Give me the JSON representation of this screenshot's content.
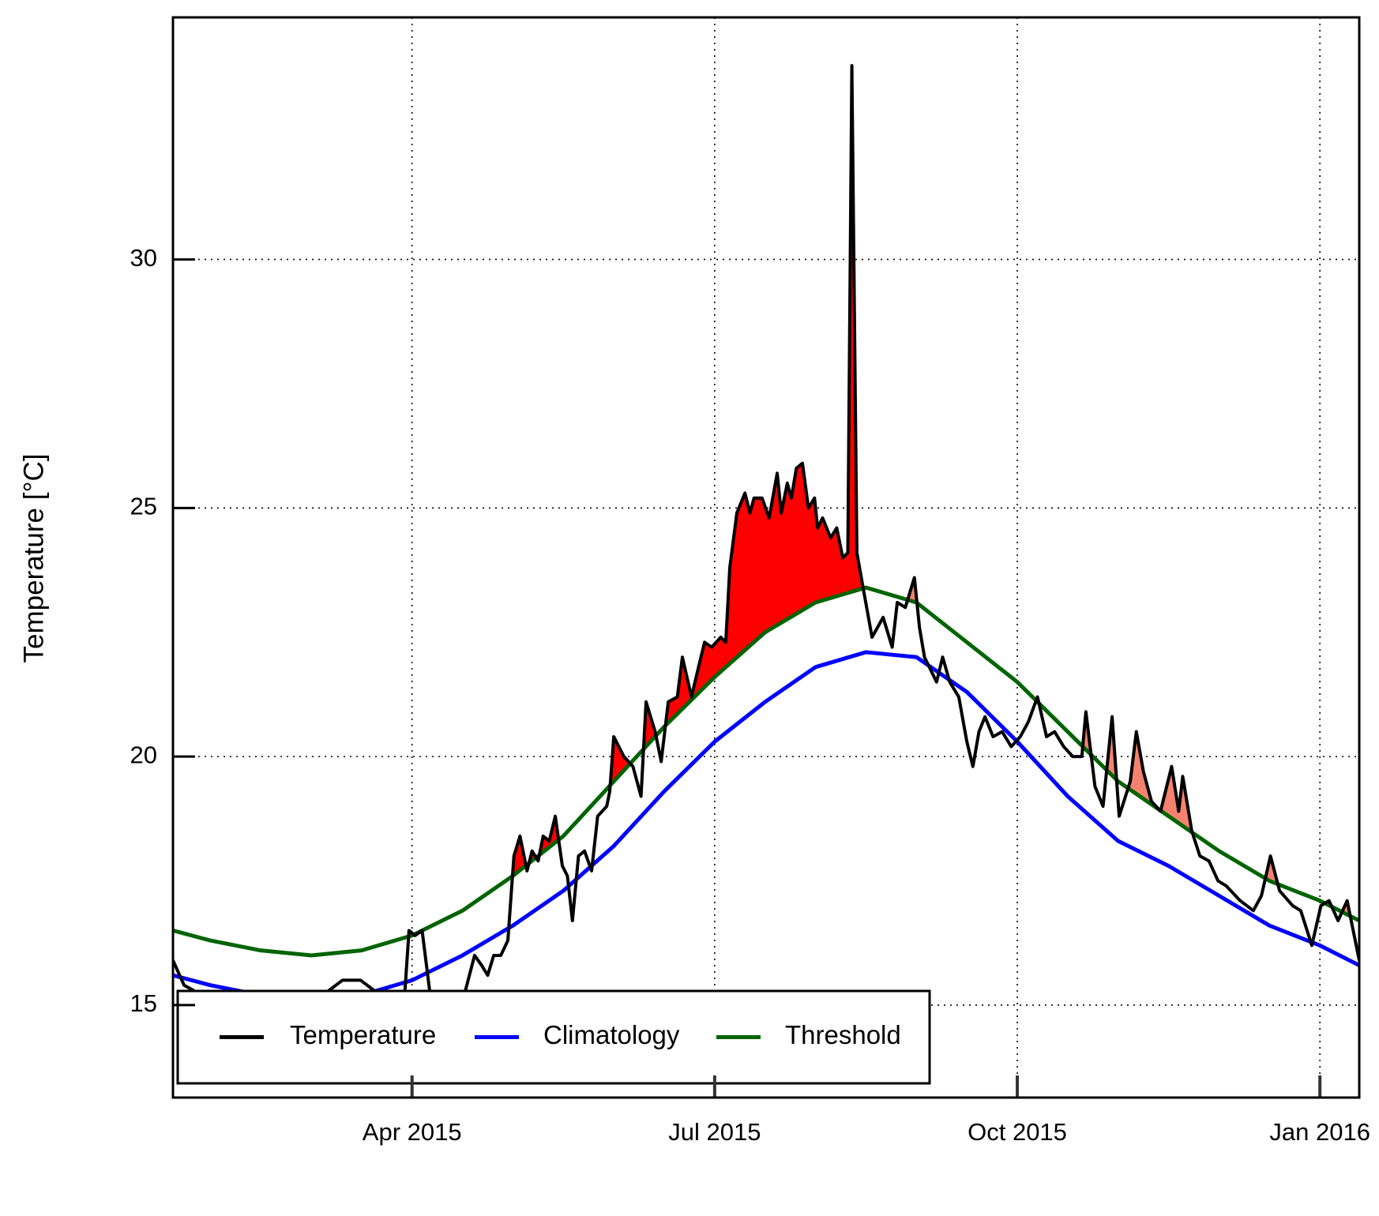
{
  "chart_data": {
    "type": "line",
    "y_label": "Temperature [°C]",
    "xlim": [
      0.63,
      12.39
    ],
    "ylim": [
      13.14,
      34.87
    ],
    "xticks": [
      {
        "value": 3,
        "label": "Apr 2015"
      },
      {
        "value": 6,
        "label": "Jul 2015"
      },
      {
        "value": 9,
        "label": "Oct 2015"
      },
      {
        "value": 12,
        "label": "Jan 2016"
      }
    ],
    "yticks": [
      15,
      20,
      25,
      30
    ],
    "grid": true,
    "legend": "bottom left",
    "exceedance_colors": [
      "#ff0000",
      "#f4826f"
    ],
    "series": [
      {
        "name": "Temperature",
        "color": "#000000",
        "x": [
          0.63,
          0.74,
          0.83,
          1.0,
          1.35,
          1.7,
          2.05,
          2.31,
          2.49,
          2.75,
          2.92,
          2.97,
          3.03,
          3.1,
          3.18,
          3.36,
          3.53,
          3.62,
          3.69,
          3.75,
          3.81,
          3.88,
          3.95,
          4.01,
          4.07,
          4.14,
          4.19,
          4.25,
          4.3,
          4.36,
          4.42,
          4.49,
          4.54,
          4.59,
          4.65,
          4.71,
          4.78,
          4.84,
          4.93,
          4.96,
          5.0,
          5.1,
          5.19,
          5.27,
          5.32,
          5.41,
          5.47,
          5.54,
          5.63,
          5.68,
          5.77,
          5.84,
          5.9,
          5.97,
          6.06,
          6.11,
          6.15,
          6.22,
          6.3,
          6.35,
          6.39,
          6.47,
          6.54,
          6.62,
          6.66,
          6.72,
          6.76,
          6.81,
          6.87,
          6.93,
          6.99,
          7.02,
          7.07,
          7.15,
          7.21,
          7.27,
          7.32,
          7.36,
          7.41,
          7.48,
          7.56,
          7.67,
          7.76,
          7.81,
          7.89,
          7.98,
          8.03,
          8.08,
          8.2,
          8.26,
          8.33,
          8.42,
          8.5,
          8.56,
          8.62,
          8.68,
          8.76,
          8.85,
          8.94,
          9.03,
          9.11,
          9.2,
          9.29,
          9.37,
          9.46,
          9.55,
          9.64,
          9.68,
          9.77,
          9.85,
          9.94,
          10.01,
          10.12,
          10.18,
          10.25,
          10.33,
          10.42,
          10.53,
          10.6,
          10.64,
          10.73,
          10.81,
          10.9,
          10.99,
          11.07,
          11.21,
          11.34,
          11.42,
          11.51,
          11.6,
          11.73,
          11.81,
          11.92,
          12.01,
          12.09,
          12.18,
          12.27,
          12.33,
          12.39
        ],
        "values": [
          15.9,
          15.4,
          15.3,
          15.0,
          15.1,
          15.0,
          15.1,
          15.5,
          15.5,
          15.1,
          15.0,
          16.5,
          16.4,
          16.5,
          15.2,
          14.9,
          15.3,
          16.0,
          15.8,
          15.6,
          16.0,
          16.0,
          16.3,
          18.0,
          18.4,
          17.7,
          18.1,
          17.9,
          18.4,
          18.3,
          18.8,
          17.8,
          17.6,
          16.7,
          18.0,
          18.1,
          17.7,
          18.8,
          19.0,
          19.3,
          20.4,
          20.0,
          19.8,
          19.2,
          21.1,
          20.5,
          19.9,
          21.1,
          21.2,
          22.0,
          21.2,
          21.8,
          22.3,
          22.2,
          22.4,
          22.3,
          23.8,
          24.9,
          25.3,
          24.9,
          25.2,
          25.2,
          24.8,
          25.7,
          24.9,
          25.5,
          25.2,
          25.8,
          25.9,
          25.0,
          25.2,
          24.6,
          24.8,
          24.4,
          24.6,
          24.0,
          24.1,
          33.9,
          24.1,
          23.3,
          22.4,
          22.8,
          22.2,
          23.1,
          23.0,
          23.6,
          22.6,
          22.0,
          21.5,
          22.0,
          21.5,
          21.2,
          20.3,
          19.8,
          20.5,
          20.8,
          20.4,
          20.5,
          20.2,
          20.4,
          20.7,
          21.2,
          20.4,
          20.5,
          20.2,
          20.0,
          20.0,
          20.9,
          19.4,
          19.0,
          20.8,
          18.8,
          19.5,
          20.5,
          19.7,
          19.1,
          18.9,
          19.8,
          18.9,
          19.6,
          18.5,
          18.0,
          17.9,
          17.5,
          17.4,
          17.1,
          16.9,
          17.2,
          18.0,
          17.3,
          17.0,
          16.9,
          16.2,
          17.0,
          17.1,
          16.7,
          17.1,
          16.5,
          15.9
        ]
      },
      {
        "name": "Climatology",
        "color": "#0000ff",
        "x": [
          0.63,
          1.0,
          1.5,
          2.0,
          2.5,
          3.0,
          3.5,
          4.0,
          4.5,
          5.0,
          5.5,
          6.0,
          6.5,
          7.0,
          7.5,
          8.0,
          8.5,
          9.0,
          9.5,
          10.0,
          10.5,
          11.0,
          11.5,
          12.0,
          12.39
        ],
        "values": [
          15.6,
          15.4,
          15.2,
          15.1,
          15.2,
          15.5,
          16.0,
          16.6,
          17.3,
          18.2,
          19.3,
          20.3,
          21.1,
          21.8,
          22.1,
          22.0,
          21.3,
          20.3,
          19.2,
          18.3,
          17.8,
          17.2,
          16.6,
          16.2,
          15.8
        ]
      },
      {
        "name": "Threshold",
        "color": "#006400",
        "x": [
          0.63,
          1.0,
          1.5,
          2.0,
          2.5,
          3.0,
          3.5,
          4.0,
          4.5,
          5.0,
          5.5,
          6.0,
          6.5,
          7.0,
          7.5,
          8.0,
          8.5,
          9.0,
          9.5,
          10.0,
          10.5,
          11.0,
          11.5,
          12.0,
          12.39
        ],
        "values": [
          16.5,
          16.3,
          16.1,
          16.0,
          16.1,
          16.4,
          16.9,
          17.6,
          18.4,
          19.5,
          20.6,
          21.6,
          22.5,
          23.1,
          23.4,
          23.1,
          22.3,
          21.5,
          20.5,
          19.5,
          18.8,
          18.1,
          17.5,
          17.1,
          16.7
        ]
      }
    ]
  }
}
